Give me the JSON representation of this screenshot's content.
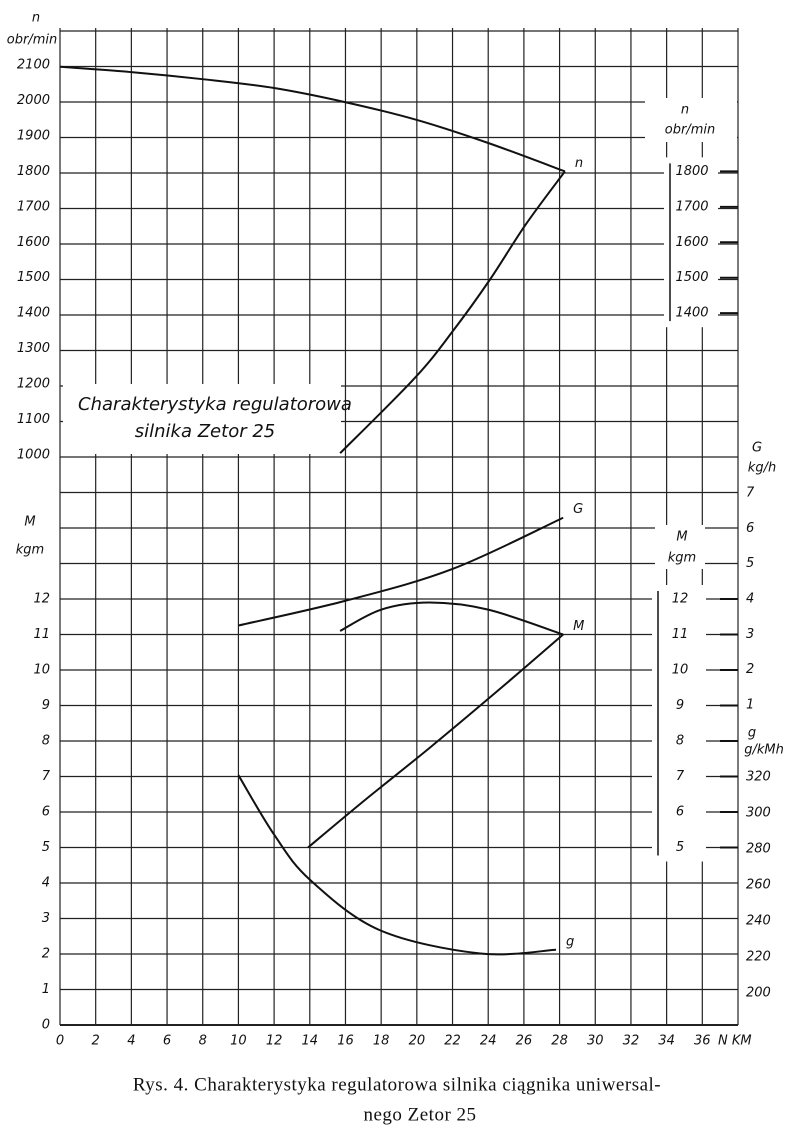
{
  "chart_data": {
    "type": "line",
    "xlabel": "N KM",
    "xlim": [
      0,
      38
    ],
    "xticks": [
      0,
      2,
      4,
      6,
      8,
      10,
      12,
      14,
      16,
      18,
      20,
      22,
      24,
      26,
      28,
      30,
      32,
      34,
      36
    ],
    "grid": true,
    "axes": {
      "n": {
        "label": "n",
        "unit": "obr/min",
        "lim": [
          1000,
          2100
        ],
        "ticks": [
          1000,
          1100,
          1200,
          1300,
          1400,
          1500,
          1600,
          1700,
          1800,
          1900,
          2000,
          2100
        ]
      },
      "M": {
        "label": "M",
        "unit": "kgm",
        "lim": [
          0,
          12
        ],
        "ticks": [
          0,
          1,
          2,
          3,
          4,
          5,
          6,
          7,
          8,
          9,
          10,
          11,
          12
        ]
      },
      "G": {
        "label": "G",
        "unit": "kg/h",
        "lim": [
          1,
          7
        ],
        "ticks": [
          1,
          2,
          3,
          4,
          5,
          6,
          7
        ]
      },
      "g": {
        "label": "g",
        "unit": "g/kMh",
        "lim": [
          200,
          320
        ],
        "ticks": [
          200,
          220,
          240,
          260,
          280,
          300,
          320
        ]
      }
    },
    "inner_axes": {
      "n": {
        "label": "n",
        "unit": "obr/min",
        "ticks": [
          1400,
          1500,
          1600,
          1700,
          1800
        ]
      },
      "M": {
        "label": "M",
        "unit": "kgm",
        "ticks": [
          5,
          6,
          7,
          8,
          9,
          10,
          11,
          12
        ]
      }
    },
    "series": [
      {
        "name": "n",
        "axis": "n",
        "color": "#111",
        "x": [
          0,
          4,
          8,
          12,
          16,
          20,
          24,
          28.3
        ],
        "values": [
          2095,
          2080,
          2060,
          2035,
          1995,
          1945,
          1880,
          1800
        ]
      },
      {
        "axis": "n",
        "color": "#111",
        "x": [
          15.7,
          19.9,
          22.1,
          24.1,
          26.1,
          28.3
        ],
        "values": [
          1005,
          1218,
          1355,
          1495,
          1650,
          1800
        ]
      },
      {
        "name": "G",
        "axis": "G",
        "color": "#111",
        "x": [
          10,
          16,
          22,
          28.2
        ],
        "values": [
          3.25,
          3.95,
          4.85,
          6.3
        ]
      },
      {
        "name": "M",
        "axis": "M",
        "color": "#111",
        "x": [
          15.7,
          18,
          20.7,
          24,
          28.2
        ],
        "values": [
          11.1,
          11.7,
          11.9,
          11.7,
          11.0
        ]
      },
      {
        "axis": "M",
        "color": "#111",
        "x": [
          13.9,
          17,
          20.7,
          24.5,
          28.2
        ],
        "values": [
          5.0,
          6.3,
          7.8,
          9.4,
          11.0
        ]
      },
      {
        "name": "g",
        "axis": "g",
        "color": "#111",
        "x": [
          10,
          12,
          14,
          17.9,
          23.5,
          27.8
        ],
        "values": [
          321,
          288,
          263,
          235,
          222,
          224
        ]
      }
    ],
    "annotation": [
      "Charakterystyka regulatorowa",
      "silnika  Zetor 25"
    ],
    "caption": [
      "Rys. 4.  Charakterystyka regulatorowa silnika ciągnika uniwersal-",
      "nego  Zetor  25"
    ]
  }
}
